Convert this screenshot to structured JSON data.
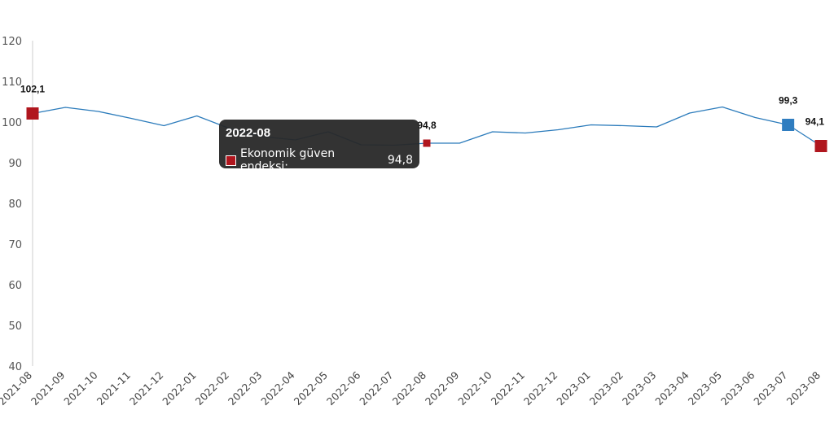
{
  "chart_data": {
    "type": "line",
    "categories": [
      "2021-08",
      "2021-09",
      "2021-10",
      "2021-11",
      "2021-12",
      "2022-01",
      "2022-02",
      "2022-03",
      "2022-04",
      "2022-05",
      "2022-06",
      "2022-07",
      "2022-08",
      "2022-09",
      "2022-10",
      "2022-11",
      "2022-12",
      "2023-01",
      "2023-02",
      "2023-03",
      "2023-04",
      "2023-05",
      "2023-06",
      "2023-07",
      "2023-08"
    ],
    "series": [
      {
        "name": "Ekonomik güven endeksi",
        "values": [
          102.1,
          103.6,
          102.6,
          100.9,
          99.1,
          101.5,
          98.4,
          96.4,
          95.6,
          97.6,
          94.4,
          94.3,
          94.8,
          94.8,
          97.6,
          97.3,
          98.1,
          99.3,
          99.1,
          98.8,
          102.2,
          103.7,
          101.1,
          99.3,
          94.1
        ]
      }
    ],
    "ylim": [
      40,
      120
    ],
    "yticks": [
      40,
      50,
      60,
      70,
      80,
      90,
      100,
      110,
      120
    ],
    "grid": false,
    "line_color": "#2b7bbb",
    "marker_colors": {
      "default": "#b0161e",
      "highlight": "#2f7dc0"
    },
    "data_labels": [
      {
        "category": "2021-08",
        "text": "102,1",
        "marker": "default"
      },
      {
        "category": "2022-08",
        "text": "94,8",
        "marker": "default"
      },
      {
        "category": "2023-07",
        "text": "99,3",
        "marker": "highlight"
      },
      {
        "category": "2023-08",
        "text": "94,1",
        "marker": "default"
      }
    ],
    "tooltip": {
      "title": "2022-08",
      "series_label": "Ekonomik güven endeksi:",
      "value": "94,8",
      "swatch_color": "#b0161e"
    }
  }
}
